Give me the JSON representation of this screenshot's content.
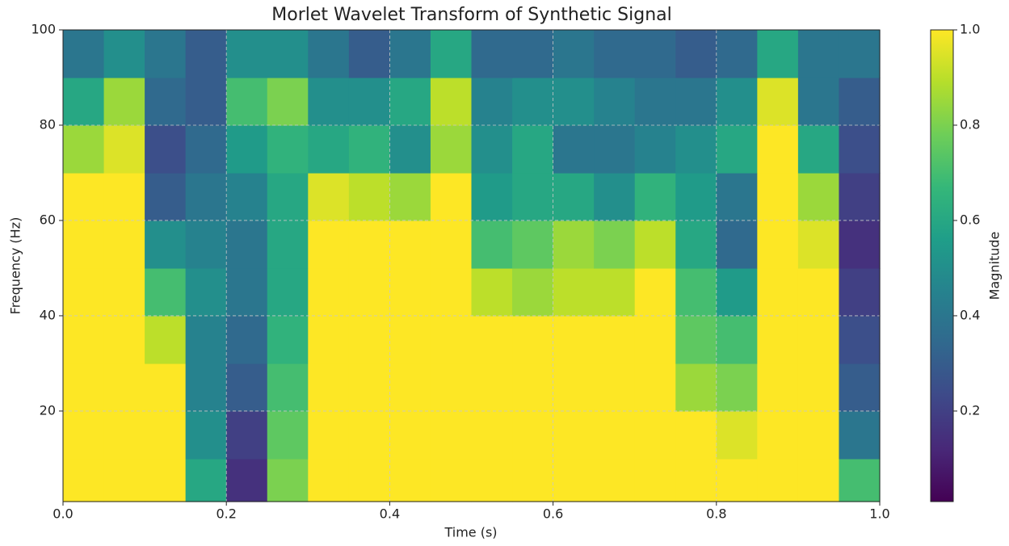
{
  "chart_data": {
    "type": "heatmap",
    "title": "Morlet Wavelet Transform of Synthetic Signal",
    "x_label": "Time (s)",
    "y_label": "Frequency (Hz)",
    "colorbar_label": "Magnitude",
    "xbins": [
      0,
      0.05,
      0.1,
      0.15,
      0.2,
      0.25,
      0.3,
      0.35,
      0.4,
      0.45,
      0.5,
      0.55,
      0.6,
      0.65,
      0.7,
      0.75,
      0.8,
      0.85,
      0.9,
      0.95,
      1
    ],
    "ybins": [
      1,
      10,
      20,
      30,
      40,
      50,
      60,
      70,
      80,
      90,
      100
    ],
    "z": [
      [
        1,
        1,
        1,
        0.6,
        0.15,
        0.8,
        1,
        1,
        1,
        1,
        1,
        1,
        1,
        1,
        1,
        1,
        1,
        1,
        1,
        0.7
      ],
      [
        1,
        1,
        1,
        0.5,
        0.2,
        0.75,
        1,
        1,
        1,
        1,
        1,
        1,
        1,
        1,
        1,
        1,
        0.95,
        1,
        1,
        0.4
      ],
      [
        1,
        1,
        1,
        0.45,
        0.3,
        0.7,
        1,
        1,
        1,
        1,
        1,
        1,
        1,
        1,
        1,
        0.85,
        0.8,
        1,
        1,
        0.3
      ],
      [
        1,
        1,
        0.9,
        0.45,
        0.35,
        0.65,
        1,
        1,
        1,
        1,
        1,
        1,
        1,
        1,
        1,
        0.75,
        0.7,
        1,
        1,
        0.25
      ],
      [
        1,
        1,
        0.7,
        0.5,
        0.4,
        0.6,
        1,
        1,
        1,
        1,
        0.9,
        0.85,
        0.9,
        0.9,
        1,
        0.7,
        0.55,
        1,
        1,
        0.2
      ],
      [
        1,
        1,
        0.5,
        0.45,
        0.4,
        0.6,
        1,
        1,
        1,
        1,
        0.7,
        0.75,
        0.85,
        0.8,
        0.9,
        0.6,
        0.35,
        1,
        0.95,
        0.15
      ],
      [
        1,
        1,
        0.3,
        0.4,
        0.45,
        0.6,
        0.95,
        0.9,
        0.85,
        1,
        0.55,
        0.6,
        0.6,
        0.5,
        0.65,
        0.55,
        0.4,
        1,
        0.85,
        0.2
      ],
      [
        0.85,
        0.95,
        0.25,
        0.35,
        0.55,
        0.65,
        0.6,
        0.65,
        0.5,
        0.85,
        0.5,
        0.6,
        0.4,
        0.4,
        0.45,
        0.5,
        0.6,
        1,
        0.6,
        0.25
      ],
      [
        0.6,
        0.85,
        0.35,
        0.3,
        0.7,
        0.8,
        0.5,
        0.5,
        0.6,
        0.9,
        0.45,
        0.5,
        0.5,
        0.45,
        0.4,
        0.4,
        0.5,
        0.95,
        0.4,
        0.3
      ],
      [
        0.4,
        0.5,
        0.4,
        0.3,
        0.5,
        0.5,
        0.4,
        0.3,
        0.4,
        0.6,
        0.35,
        0.35,
        0.4,
        0.35,
        0.35,
        0.3,
        0.35,
        0.6,
        0.4,
        0.4
      ]
    ],
    "xlim": [
      0,
      1
    ],
    "xticks": [
      {
        "value": 0,
        "label": "0.0"
      },
      0.2,
      0.4,
      0.6,
      0.8,
      {
        "value": 1,
        "label": "1.0"
      }
    ],
    "ylim": [
      1,
      100
    ],
    "yticks": [
      20,
      40,
      60,
      80,
      100
    ],
    "clim": [
      0.01,
      1
    ],
    "cbar_ticks": [
      0.2,
      0.4,
      0.6,
      0.8,
      {
        "value": 1,
        "label": "1.0"
      }
    ],
    "colormap": [
      "#440154",
      "#482878",
      "#3e4989",
      "#31688e",
      "#26828e",
      "#1f9e89",
      "#35b779",
      "#6ece58",
      "#b5de2b",
      "#fde725"
    ],
    "grid": true
  }
}
